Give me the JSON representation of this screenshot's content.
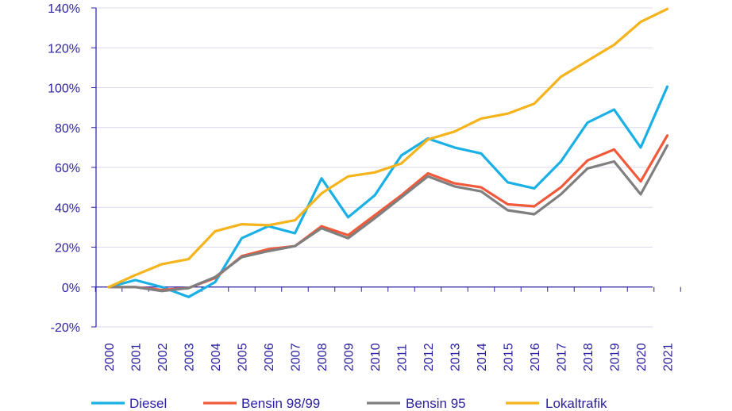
{
  "chart_data": {
    "type": "line",
    "title": "",
    "xlabel": "",
    "ylabel": "",
    "ylim": [
      -20,
      140
    ],
    "y_ticks": [
      -20,
      0,
      20,
      40,
      60,
      80,
      100,
      120,
      140
    ],
    "y_tick_labels": [
      "-20%",
      "0%",
      "20%",
      "40%",
      "60%",
      "80%",
      "100%",
      "120%",
      "140%"
    ],
    "categories": [
      "2000",
      "2001",
      "2002",
      "2003",
      "2004",
      "2005",
      "2006",
      "2007",
      "2008",
      "2009",
      "2010",
      "2011",
      "2012",
      "2013",
      "2014",
      "2015",
      "2016",
      "2017",
      "2018",
      "2019",
      "2020",
      "2021"
    ],
    "grid": "horizontal",
    "legend_position": "bottom",
    "colors": {
      "axis": "#2a1fa0",
      "grid": "#d9d9ef"
    },
    "series": [
      {
        "name": "Diesel",
        "color": "#1ab0e6",
        "values": [
          0,
          3.5,
          0,
          -5,
          2.5,
          24.5,
          30.5,
          27,
          54.5,
          35,
          46,
          66,
          74.5,
          70,
          67,
          52.5,
          49.5,
          63,
          82.5,
          89,
          70,
          100.5
        ]
      },
      {
        "name": "Bensin 98/99",
        "color": "#f05a3a",
        "values": [
          0,
          0,
          -1.5,
          -0.5,
          4.5,
          15.5,
          19,
          20.5,
          30.5,
          26,
          36,
          46,
          57,
          52,
          50,
          41.5,
          40.5,
          50,
          63.5,
          69,
          53,
          76
        ]
      },
      {
        "name": "Bensin 95",
        "color": "#7f7f7f",
        "values": [
          0,
          0,
          -2,
          -0.5,
          5,
          15,
          18,
          20.5,
          29.5,
          24.5,
          34.5,
          45,
          55.5,
          50.5,
          48,
          38.5,
          36.5,
          46.5,
          59.5,
          63,
          46.5,
          71
        ]
      },
      {
        "name": "Lokaltrafik",
        "color": "#f5b31c",
        "values": [
          0,
          6,
          11.5,
          14,
          28,
          31.5,
          31,
          33.5,
          47,
          55.5,
          57.5,
          62,
          74,
          78,
          84.5,
          87,
          92,
          105.5,
          113.5,
          121.5,
          133,
          139.5
        ]
      }
    ]
  }
}
